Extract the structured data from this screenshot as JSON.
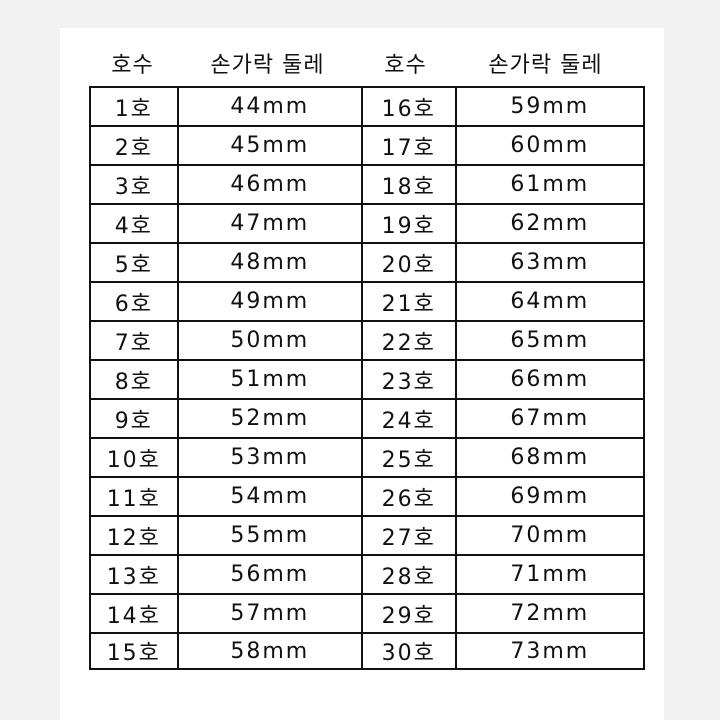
{
  "headers": [
    "호수",
    "손가락 둘레",
    "호수",
    "손가락 둘레"
  ],
  "rows": [
    {
      "left_size": "1호",
      "left_circ": "44mm",
      "right_size": "16호",
      "right_circ": "59mm"
    },
    {
      "left_size": "2호",
      "left_circ": "45mm",
      "right_size": "17호",
      "right_circ": "60mm"
    },
    {
      "left_size": "3호",
      "left_circ": "46mm",
      "right_size": "18호",
      "right_circ": "61mm"
    },
    {
      "left_size": "4호",
      "left_circ": "47mm",
      "right_size": "19호",
      "right_circ": "62mm"
    },
    {
      "left_size": "5호",
      "left_circ": "48mm",
      "right_size": "20호",
      "right_circ": "63mm"
    },
    {
      "left_size": "6호",
      "left_circ": "49mm",
      "right_size": "21호",
      "right_circ": "64mm"
    },
    {
      "left_size": "7호",
      "left_circ": "50mm",
      "right_size": "22호",
      "right_circ": "65mm"
    },
    {
      "left_size": "8호",
      "left_circ": "51mm",
      "right_size": "23호",
      "right_circ": "66mm"
    },
    {
      "left_size": "9호",
      "left_circ": "52mm",
      "right_size": "24호",
      "right_circ": "67mm"
    },
    {
      "left_size": "10호",
      "left_circ": "53mm",
      "right_size": "25호",
      "right_circ": "68mm"
    },
    {
      "left_size": "11호",
      "left_circ": "54mm",
      "right_size": "26호",
      "right_circ": "69mm"
    },
    {
      "left_size": "12호",
      "left_circ": "55mm",
      "right_size": "27호",
      "right_circ": "70mm"
    },
    {
      "left_size": "13호",
      "left_circ": "56mm",
      "right_size": "28호",
      "right_circ": "71mm"
    },
    {
      "left_size": "14호",
      "left_circ": "57mm",
      "right_size": "29호",
      "right_circ": "72mm"
    },
    {
      "left_size": "15호",
      "left_circ": "58mm",
      "right_size": "30호",
      "right_circ": "73mm"
    }
  ]
}
